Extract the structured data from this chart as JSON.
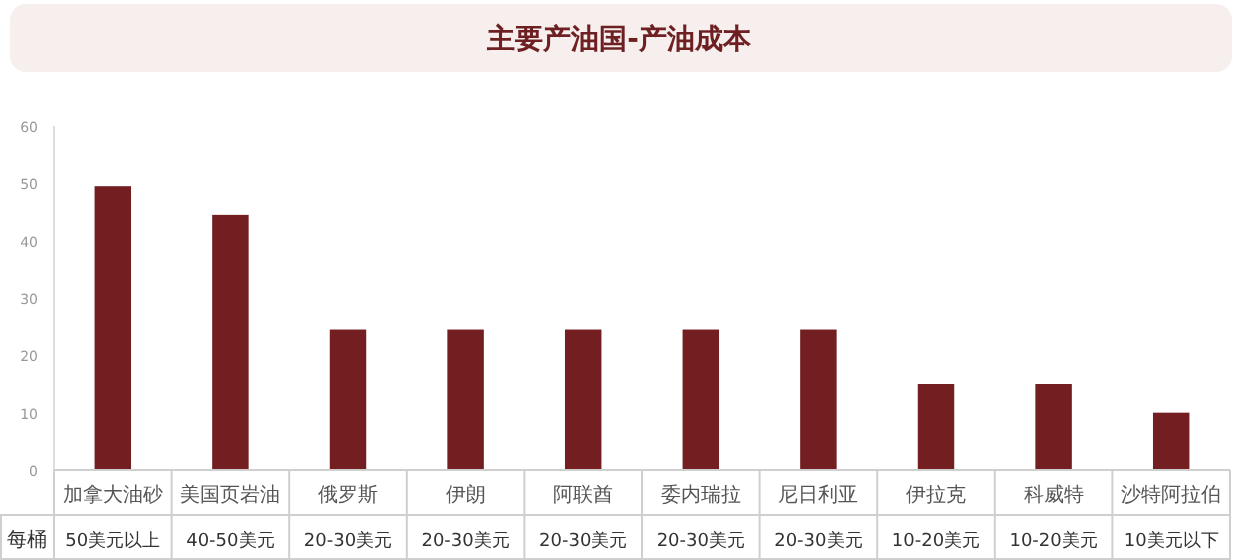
{
  "chart_data": {
    "type": "bar",
    "title": "主要产油国-产油成本",
    "categories": [
      "加拿大油砂",
      "美国页岩油",
      "俄罗斯",
      "伊朗",
      "阿联酋",
      "委内瑞拉",
      "尼日利亚",
      "伊拉克",
      "科威特",
      "沙特阿拉伯"
    ],
    "values": [
      49.5,
      44.5,
      24.5,
      24.5,
      24.5,
      24.5,
      24.5,
      15,
      15,
      10
    ],
    "value_labels": [
      "50美元以上",
      "40-50美元",
      "20-30美元",
      "20-30美元",
      "20-30美元",
      "20-30美元",
      "20-30美元",
      "10-20美元",
      "10-20美元",
      "10美元以下"
    ],
    "annotations": [
      "每桶"
    ],
    "color": "#731e20",
    "ylim": [
      0,
      60
    ],
    "yticks": [
      0,
      10,
      20,
      30,
      40,
      50,
      60
    ],
    "grid": false
  }
}
